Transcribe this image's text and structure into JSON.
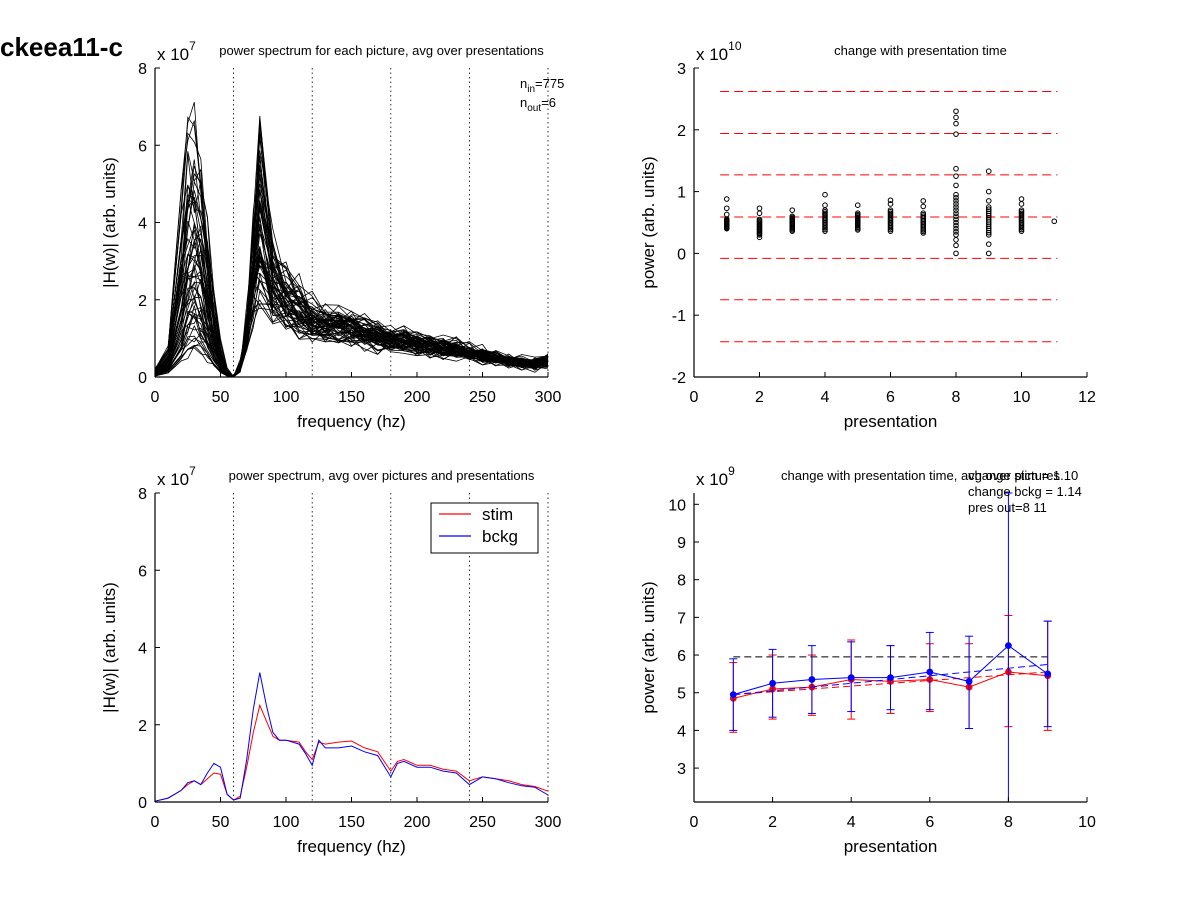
{
  "figure_title": "ckeea11-c",
  "chart_data": [
    {
      "panel": "top-left",
      "type": "line",
      "title": "power spectrum for each picture, avg over presentations",
      "xlabel": "frequency (hz)",
      "ylabel": "|H(w)| (arb. units)",
      "exponent": {
        "base": "x 10",
        "power": "7"
      },
      "xlim": [
        0,
        300
      ],
      "ylim": [
        0,
        8
      ],
      "xticks": [
        0,
        50,
        100,
        150,
        200,
        250,
        300
      ],
      "yticks": [
        0,
        2,
        4,
        6,
        8
      ],
      "vlines": [
        60,
        120,
        180,
        240,
        300
      ],
      "annotations": [
        {
          "base": "n",
          "sub": "in",
          "value": "=775"
        },
        {
          "base": "n",
          "sub": "out",
          "value": "=6"
        }
      ],
      "line_color": "#000000",
      "series_count_approx": 60,
      "representative_series": [
        {
          "x": [
            0,
            10,
            20,
            25,
            30,
            35,
            40,
            45,
            50,
            55,
            60,
            65,
            70,
            75,
            80,
            90,
            100,
            110,
            120,
            130,
            140,
            150,
            160,
            170,
            180,
            190,
            200,
            210,
            220,
            230,
            240,
            250,
            260,
            270,
            280,
            290,
            300
          ],
          "y": [
            0.2,
            0.9,
            4.5,
            6.2,
            6.4,
            5.9,
            4.2,
            2.2,
            0.9,
            0.2,
            0.02,
            0.3,
            1.6,
            3.9,
            5.9,
            3.4,
            2.7,
            2.3,
            1.9,
            1.7,
            1.6,
            1.5,
            1.4,
            1.3,
            1.2,
            1.1,
            1.05,
            1.0,
            0.95,
            0.85,
            0.75,
            0.65,
            0.55,
            0.5,
            0.45,
            0.4,
            0.5
          ]
        },
        {
          "x": [
            0,
            10,
            20,
            25,
            30,
            35,
            40,
            45,
            50,
            55,
            60,
            65,
            70,
            75,
            80,
            90,
            100,
            110,
            120,
            130,
            140,
            150,
            160,
            170,
            180,
            190,
            200,
            210,
            220,
            230,
            240,
            250,
            260,
            270,
            280,
            290,
            300
          ],
          "y": [
            0.1,
            0.5,
            2.6,
            3.9,
            4.1,
            3.7,
            2.7,
            1.3,
            0.5,
            0.1,
            0.02,
            0.3,
            1.4,
            3.3,
            5.2,
            2.9,
            2.3,
            2.0,
            1.6,
            1.5,
            1.4,
            1.35,
            1.25,
            1.15,
            1.05,
            1.0,
            0.95,
            0.9,
            0.85,
            0.75,
            0.65,
            0.6,
            0.5,
            0.45,
            0.4,
            0.35,
            0.45
          ]
        },
        {
          "x": [
            0,
            10,
            20,
            25,
            30,
            35,
            40,
            45,
            50,
            55,
            60,
            65,
            70,
            75,
            80,
            90,
            100,
            110,
            120,
            130,
            140,
            150,
            160,
            170,
            180,
            190,
            200,
            210,
            220,
            230,
            240,
            250,
            260,
            270,
            280,
            290,
            300
          ],
          "y": [
            0.05,
            0.25,
            1.0,
            1.7,
            1.9,
            1.6,
            1.1,
            0.6,
            0.25,
            0.05,
            0.02,
            0.3,
            1.2,
            2.4,
            3.1,
            2.1,
            1.8,
            1.6,
            1.4,
            1.4,
            1.3,
            1.25,
            1.15,
            1.05,
            0.95,
            0.9,
            0.85,
            0.8,
            0.75,
            0.7,
            0.6,
            0.55,
            0.45,
            0.4,
            0.35,
            0.32,
            0.4
          ]
        },
        {
          "x": [
            0,
            10,
            20,
            25,
            30,
            35,
            40,
            45,
            50,
            55,
            60,
            65,
            70,
            75,
            80,
            90,
            100,
            110,
            120,
            130,
            140,
            150,
            160,
            170,
            180,
            190,
            200,
            210,
            220,
            230,
            240,
            250,
            260,
            270,
            280,
            290,
            300
          ],
          "y": [
            0.02,
            0.1,
            0.35,
            0.55,
            0.7,
            0.6,
            0.45,
            0.3,
            0.12,
            0.03,
            0.01,
            0.2,
            0.8,
            1.5,
            1.9,
            1.5,
            1.3,
            1.2,
            1.0,
            1.0,
            0.95,
            0.9,
            0.85,
            0.8,
            0.75,
            0.7,
            0.65,
            0.6,
            0.58,
            0.55,
            0.5,
            0.45,
            0.4,
            0.35,
            0.3,
            0.27,
            0.3
          ]
        }
      ]
    },
    {
      "panel": "top-right",
      "type": "scatter",
      "title": "change with presentation time",
      "xlabel": "presentation",
      "ylabel": "power (arb. units)",
      "exponent": {
        "base": "x 10",
        "power": "10"
      },
      "xlim": [
        0,
        12
      ],
      "ylim": [
        -2,
        3
      ],
      "xticks": [
        0,
        2,
        4,
        6,
        8,
        10,
        12
      ],
      "yticks": [
        -2,
        -1,
        0,
        1,
        2,
        3
      ],
      "hlines": [
        2.62,
        1.94,
        1.27,
        0.59,
        -0.08,
        -0.75,
        -1.43
      ],
      "hline_color": "#ff0000",
      "marker_color": "#000000",
      "points": [
        {
          "x": 1,
          "min": 0.4,
          "max": 0.55,
          "extras": [
            0.63,
            0.73,
            0.88
          ]
        },
        {
          "x": 2,
          "min": 0.3,
          "max": 0.55,
          "extras": [
            0.26,
            0.65,
            0.73
          ]
        },
        {
          "x": 3,
          "min": 0.36,
          "max": 0.6,
          "extras": [
            0.7
          ]
        },
        {
          "x": 4,
          "min": 0.36,
          "max": 0.7,
          "extras": [
            0.78,
            0.95
          ]
        },
        {
          "x": 5,
          "min": 0.38,
          "max": 0.65,
          "extras": [
            0.78
          ]
        },
        {
          "x": 6,
          "min": 0.36,
          "max": 0.7,
          "extras": [
            0.8,
            0.86
          ]
        },
        {
          "x": 7,
          "min": 0.33,
          "max": 0.65,
          "extras": [
            0.76,
            0.85
          ]
        },
        {
          "x": 8,
          "min": 0.3,
          "max": 0.95,
          "extras": [
            0.0,
            0.13,
            0.22,
            1.1,
            1.25,
            1.37,
            1.93,
            2.1,
            2.2,
            2.3
          ]
        },
        {
          "x": 9,
          "min": 0.3,
          "max": 0.75,
          "extras": [
            0.0,
            0.15,
            0.85,
            1.0,
            1.33
          ]
        },
        {
          "x": 10,
          "min": 0.36,
          "max": 0.7,
          "extras": [
            0.8,
            0.88
          ]
        },
        {
          "x": 11,
          "min": 0.52,
          "max": 0.52,
          "extras": []
        }
      ]
    },
    {
      "panel": "bottom-left",
      "type": "line",
      "title": "power spectrum, avg over pictures and presentations",
      "xlabel": "frequency (hz)",
      "ylabel": "|H(w)| (arb. units)",
      "exponent": {
        "base": "x 10",
        "power": "7"
      },
      "xlim": [
        0,
        300
      ],
      "ylim": [
        0,
        8
      ],
      "xticks": [
        0,
        50,
        100,
        150,
        200,
        250,
        300
      ],
      "yticks": [
        0,
        2,
        4,
        6,
        8
      ],
      "vlines": [
        60,
        120,
        180,
        240,
        300
      ],
      "legend_position": "top-right",
      "x": [
        0,
        10,
        20,
        25,
        30,
        35,
        40,
        45,
        50,
        55,
        60,
        65,
        70,
        75,
        80,
        85,
        90,
        95,
        100,
        110,
        115,
        120,
        125,
        130,
        140,
        150,
        160,
        170,
        180,
        185,
        190,
        200,
        210,
        220,
        230,
        240,
        245,
        250,
        260,
        270,
        280,
        290,
        300
      ],
      "series": [
        {
          "name": "stim",
          "color": "#ff0000",
          "values": [
            0.02,
            0.1,
            0.3,
            0.45,
            0.55,
            0.45,
            0.6,
            0.75,
            0.72,
            0.2,
            0.05,
            0.15,
            0.9,
            1.8,
            2.5,
            2.1,
            1.7,
            1.6,
            1.6,
            1.55,
            1.3,
            1.1,
            1.55,
            1.5,
            1.55,
            1.58,
            1.4,
            1.3,
            0.8,
            1.05,
            1.1,
            0.95,
            0.95,
            0.85,
            0.8,
            0.55,
            0.6,
            0.65,
            0.6,
            0.55,
            0.45,
            0.4,
            0.28
          ]
        },
        {
          "name": "bckg",
          "color": "#0000ff",
          "values": [
            0.02,
            0.1,
            0.3,
            0.5,
            0.55,
            0.45,
            0.75,
            1.0,
            0.9,
            0.2,
            0.05,
            0.1,
            1.1,
            2.4,
            3.35,
            2.5,
            1.8,
            1.6,
            1.6,
            1.5,
            1.25,
            0.95,
            1.6,
            1.4,
            1.4,
            1.45,
            1.3,
            1.2,
            0.65,
            1.0,
            1.05,
            0.9,
            0.9,
            0.8,
            0.75,
            0.45,
            0.55,
            0.65,
            0.6,
            0.5,
            0.42,
            0.38,
            0.18
          ]
        }
      ]
    },
    {
      "panel": "bottom-right",
      "type": "line",
      "title": "change with presentation time, avg over pictures",
      "xlabel": "presentation",
      "ylabel": "power (arb. units)",
      "exponent": {
        "base": "x 10",
        "power": "9"
      },
      "xlim": [
        0,
        10
      ],
      "ylim": [
        2.1,
        10.3
      ],
      "xticks": [
        0,
        2,
        4,
        6,
        8,
        10
      ],
      "yticks": [
        3,
        4,
        5,
        6,
        7,
        8,
        9,
        10
      ],
      "annotations": [
        "change stim = 1.10",
        "change bckg = 1.14",
        "pres out=8 11"
      ],
      "hline": {
        "y": 5.95,
        "color": "#000000",
        "style": "dashed"
      },
      "x": [
        1,
        2,
        3,
        4,
        5,
        6,
        7,
        8,
        9
      ],
      "series": [
        {
          "name": "stim",
          "color": "#ff0000",
          "values": [
            4.85,
            5.1,
            5.15,
            5.35,
            5.3,
            5.35,
            5.15,
            5.55,
            5.45
          ],
          "lower": [
            3.95,
            4.3,
            4.4,
            4.3,
            4.45,
            4.5,
            4.05,
            4.1,
            4.0
          ],
          "upper": [
            5.8,
            6.0,
            6.0,
            6.4,
            6.25,
            6.3,
            6.3,
            7.05,
            6.9
          ],
          "trend": [
            4.95,
            5.55
          ]
        },
        {
          "name": "bckg",
          "color": "#0000ff",
          "values": [
            4.95,
            5.25,
            5.35,
            5.4,
            5.4,
            5.55,
            5.3,
            6.25,
            5.5
          ],
          "lower": [
            4.0,
            4.35,
            4.45,
            4.5,
            4.55,
            4.55,
            4.05,
            2.1,
            4.1
          ],
          "upper": [
            5.9,
            6.15,
            6.25,
            6.35,
            6.25,
            6.6,
            6.5,
            10.3,
            6.9
          ],
          "trend": [
            4.95,
            5.75
          ]
        }
      ]
    }
  ]
}
